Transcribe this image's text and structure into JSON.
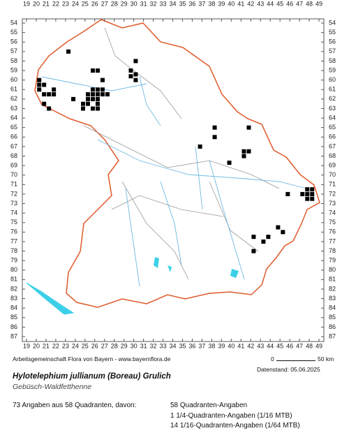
{
  "map": {
    "columns": [
      19,
      20,
      21,
      22,
      23,
      24,
      25,
      26,
      27,
      28,
      29,
      30,
      31,
      32,
      33,
      34,
      35,
      36,
      37,
      38,
      39,
      40,
      41,
      42,
      43,
      44,
      45,
      46,
      47,
      48,
      49
    ],
    "rows": [
      54,
      55,
      56,
      57,
      58,
      59,
      60,
      61,
      62,
      63,
      64,
      65,
      66,
      67,
      68,
      69,
      70,
      71,
      72,
      73,
      74,
      75,
      76,
      77,
      78,
      79,
      80,
      81,
      82,
      83,
      84,
      85,
      86,
      87
    ],
    "squares": [
      [
        23.3,
        57
      ],
      [
        30.2,
        58
      ],
      [
        25.8,
        59
      ],
      [
        26.3,
        59
      ],
      [
        29.7,
        59
      ],
      [
        30.2,
        59.4
      ],
      [
        29.7,
        59.6
      ],
      [
        20.3,
        60
      ],
      [
        26.8,
        60
      ],
      [
        30.2,
        60
      ],
      [
        20.8,
        60.5
      ],
      [
        20.3,
        60.5
      ],
      [
        20.3,
        61
      ],
      [
        21.8,
        61
      ],
      [
        25.8,
        61
      ],
      [
        26.3,
        61
      ],
      [
        26.8,
        61
      ],
      [
        20.8,
        61.5
      ],
      [
        21.3,
        61.5
      ],
      [
        21.8,
        61.5
      ],
      [
        25.3,
        61.5
      ],
      [
        25.8,
        61.5
      ],
      [
        26.3,
        61.5
      ],
      [
        26.8,
        61.5
      ],
      [
        27.3,
        61.5
      ],
      [
        23.8,
        62
      ],
      [
        25.3,
        62
      ],
      [
        25.8,
        62
      ],
      [
        26.3,
        62
      ],
      [
        20.8,
        62.5
      ],
      [
        24.8,
        62.5
      ],
      [
        25.3,
        62.5
      ],
      [
        26.3,
        62.5
      ],
      [
        21.3,
        63
      ],
      [
        24.8,
        63
      ],
      [
        25.8,
        63
      ],
      [
        26.3,
        63
      ],
      [
        38.3,
        65
      ],
      [
        41.8,
        65
      ],
      [
        38.3,
        66
      ],
      [
        36.8,
        67
      ],
      [
        41.3,
        67.5
      ],
      [
        41.8,
        67.5
      ],
      [
        41.3,
        68
      ],
      [
        39.8,
        68.7
      ],
      [
        45.8,
        72
      ],
      [
        47.3,
        72
      ],
      [
        47.8,
        72
      ],
      [
        48.3,
        72
      ],
      [
        47.8,
        71.5
      ],
      [
        48.3,
        71.5
      ],
      [
        47.8,
        72.5
      ],
      [
        48.3,
        72.5
      ],
      [
        44.8,
        75.5
      ],
      [
        45.3,
        76
      ],
      [
        42.3,
        76.5
      ],
      [
        43.8,
        76.5
      ],
      [
        43.3,
        77
      ],
      [
        42.3,
        78
      ]
    ]
  },
  "footer": {
    "credit": "Arbeitsgemeinschaft Flora von Bayern - www.bayernflora.de",
    "scale_start": "0",
    "scale_end": "50 km",
    "date": "Datenstand: 05.06.2025"
  },
  "species": {
    "name": "Hylotelephium jullianum (Boreau) Grulich",
    "common_name": "Gebüsch-Waldfetthenne"
  },
  "summary": {
    "total": "73 Angaben aus 58 Quadranten, davon:",
    "lines": [
      "58 Quadranten-Angaben",
      "1 1/4-Quadranten-Angaben (1/16 MTB)",
      "14 1/16-Quadranten-Angaben (1/64 MTB)"
    ]
  }
}
